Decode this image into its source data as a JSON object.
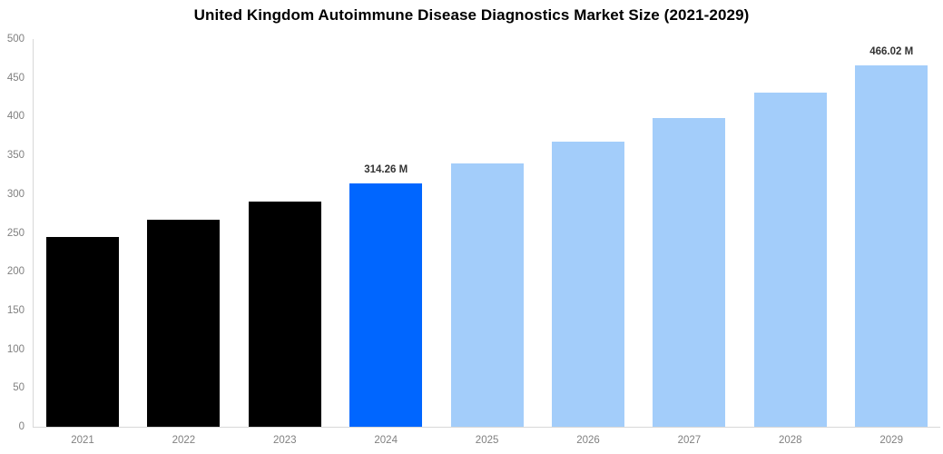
{
  "chart_data": {
    "type": "bar",
    "title": "United Kingdom Autoimmune Disease Diagnostics Market Size (2021-2029)",
    "categories": [
      "2021",
      "2022",
      "2023",
      "2024",
      "2025",
      "2026",
      "2027",
      "2028",
      "2029"
    ],
    "values": [
      245,
      267,
      290,
      314.26,
      340,
      368,
      398,
      431,
      466.02
    ],
    "bar_labels": [
      "",
      "",
      "",
      "314.26 M",
      "",
      "",
      "",
      "",
      "466.02 M"
    ],
    "bar_colors": [
      "#000000",
      "#000000",
      "#000000",
      "#0066ff",
      "#a3cdfa",
      "#a3cdfa",
      "#a3cdfa",
      "#a3cdfa",
      "#a3cdfa"
    ],
    "xlabel": "",
    "ylabel": "",
    "ylim": [
      0,
      500
    ],
    "yticks": [
      0,
      50,
      100,
      150,
      200,
      250,
      300,
      350,
      400,
      450,
      500
    ],
    "grid": false,
    "legend": false,
    "colors": {
      "historical_bar": "#000000",
      "highlight_bar": "#0066ff",
      "forecast_bar": "#a3cdfa",
      "axis_line": "#d8d8d8",
      "tick_text": "#808080",
      "value_label_text": "#333333",
      "title_text": "#000000",
      "background": "#ffffff"
    }
  }
}
